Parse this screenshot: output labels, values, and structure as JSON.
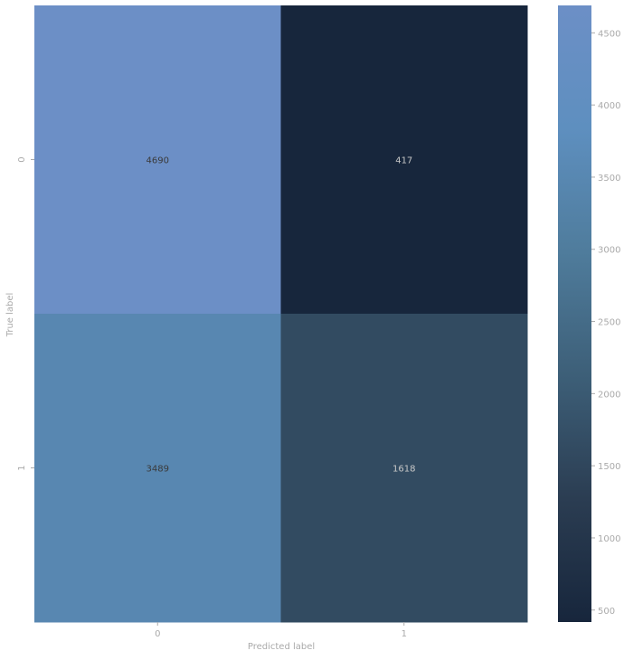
{
  "chart_data": {
    "type": "heatmap",
    "title": "",
    "xlabel": "Predicted label",
    "ylabel": "True label",
    "x_categories": [
      "0",
      "1"
    ],
    "y_categories": [
      "0",
      "1"
    ],
    "matrix": [
      [
        4690,
        417
      ],
      [
        3489,
        1618
      ]
    ],
    "colorbar": {
      "min": 417,
      "max": 4690,
      "ticks": [
        500,
        1000,
        1500,
        2000,
        2500,
        3000,
        3500,
        4000,
        4500
      ],
      "colormap": [
        "#17263c",
        "#2b3d52",
        "#3d5f78",
        "#4f7c9c",
        "#5e8fbf",
        "#6c8fc6"
      ]
    },
    "colors": {
      "low_annotation": "#c8c8c8",
      "high_annotation": "#3a3a3a",
      "axis_text": "#aaaaaa"
    }
  }
}
